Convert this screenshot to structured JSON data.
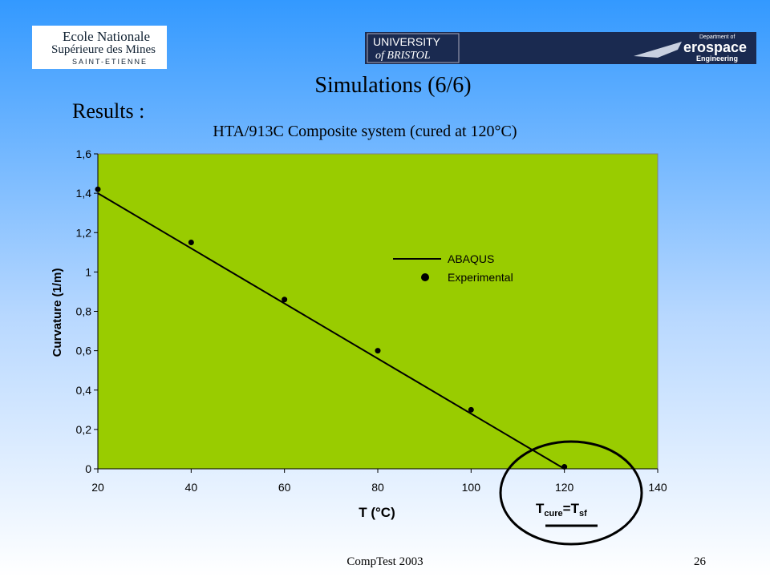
{
  "slide": {
    "title": "Simulations (6/6)",
    "heading": "Results :",
    "footer": "CompTest 2003",
    "page_number": "26"
  },
  "logos": {
    "mines": [
      "Ecole Nationale",
      "Supérieure des Mines",
      "SAINT-ETIENNE"
    ],
    "bristol": [
      "UNIVERSITY",
      "of BRISTOL"
    ],
    "aerospace": [
      "Department of",
      "erospace",
      "Engineering"
    ]
  },
  "chart_data": {
    "type": "line",
    "title": "HTA/913C Composite system (cured at 120°C)",
    "x_label": "T (°C)",
    "y_label": "Curvature (1/m)",
    "xlim": [
      20,
      140
    ],
    "ylim": [
      0,
      1.6
    ],
    "xticks": [
      20,
      40,
      60,
      80,
      100,
      120,
      140
    ],
    "yticks": [
      0,
      {
        "value": 0.2,
        "label": "0,2"
      },
      {
        "value": 0.4,
        "label": "0,4"
      },
      {
        "value": 0.6,
        "label": "0,6"
      },
      {
        "value": 0.8,
        "label": "0,8"
      },
      1,
      {
        "value": 1.2,
        "label": "1,2"
      },
      {
        "value": 1.4,
        "label": "1,4"
      },
      {
        "value": 1.6,
        "label": "1,6"
      }
    ],
    "plot_background": "#99cc00",
    "series": [
      {
        "name": "ABAQUS",
        "color": "#000000",
        "mode": "line",
        "x": [
          20,
          120
        ],
        "values": [
          1.4,
          0
        ]
      },
      {
        "name": "Experimental",
        "color": "#000000",
        "mode": "markers",
        "x": [
          20,
          40,
          60,
          80,
          100,
          120
        ],
        "values": [
          1.42,
          1.15,
          0.86,
          0.6,
          0.3,
          0.01
        ]
      }
    ],
    "annotation": [
      "T",
      "cure",
      "=T",
      "sf"
    ]
  }
}
